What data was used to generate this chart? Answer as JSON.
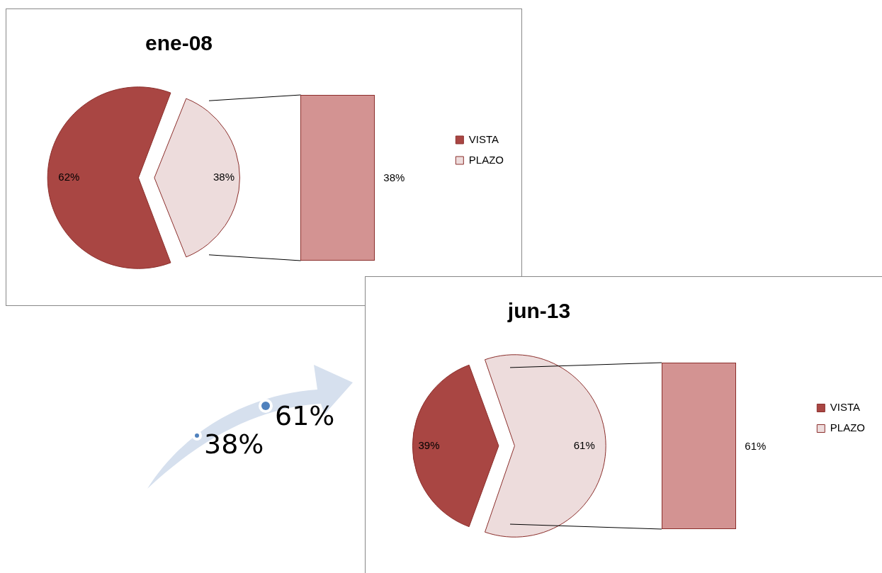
{
  "chart_data": [
    {
      "type": "pie",
      "title": "ene-08",
      "categories": [
        "VISTA",
        "PLAZO"
      ],
      "values": [
        62,
        38
      ],
      "value_labels": [
        "62%",
        "38%"
      ],
      "colors": [
        "#a94643",
        "#eddcdc"
      ],
      "legend": "right",
      "annotations": [
        "38%"
      ]
    },
    {
      "type": "pie",
      "title": "jun-13",
      "categories": [
        "VISTA",
        "PLAZO"
      ],
      "values": [
        39,
        61
      ],
      "value_labels": [
        "39%",
        "61%"
      ],
      "colors": [
        "#a94643",
        "#eddcdc"
      ],
      "legend": "right",
      "annotations": [
        "61%"
      ]
    },
    {
      "type": "other",
      "annotations": [
        "38%",
        "61%"
      ]
    }
  ]
}
